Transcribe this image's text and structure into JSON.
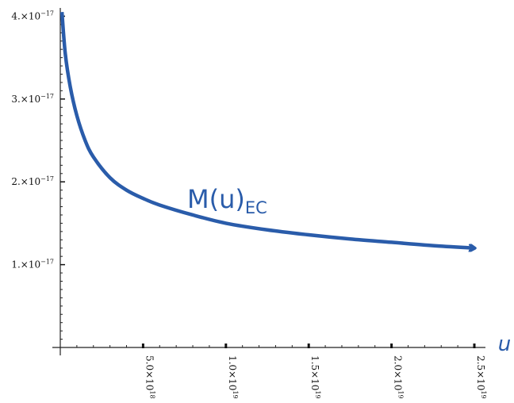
{
  "chart_data": {
    "type": "line",
    "title": "",
    "xlabel": "u",
    "ylabel": "",
    "xlim": [
      0,
      2.5e+19
    ],
    "ylim": [
      0,
      4.1e-17
    ],
    "x_ticks": [
      {
        "value": 5e+18,
        "label": "5.0×10",
        "exp": "18"
      },
      {
        "value": 1e+19,
        "label": "1.0×10",
        "exp": "19"
      },
      {
        "value": 1.5e+19,
        "label": "1.5×10",
        "exp": "19"
      },
      {
        "value": 2e+19,
        "label": "2.0×10",
        "exp": "19"
      },
      {
        "value": 2.5e+19,
        "label": "2.5×10",
        "exp": "19"
      }
    ],
    "y_ticks": [
      {
        "value": 1e-17,
        "label": "1.×10",
        "exp": "−17"
      },
      {
        "value": 2e-17,
        "label": "2.×10",
        "exp": "−17"
      },
      {
        "value": 3e-17,
        "label": "3.×10",
        "exp": "−17"
      },
      {
        "value": 4e-17,
        "label": "4.×10",
        "exp": "−17"
      }
    ],
    "series": [
      {
        "name": "",
        "color": "#2a5caa",
        "x": [
          1e+17,
          3e+17,
          6e+17,
          1e+18,
          1.5e+18,
          2e+18,
          3e+18,
          4e+18,
          5e+18,
          6e+18,
          8e+18,
          1e+19,
          1.25e+19,
          1.5e+19,
          1.75e+19,
          2e+19,
          2.25e+19,
          2.5e+19
        ],
        "y": [
          4.05e-17,
          3.55e-17,
          3.15e-17,
          2.8e-17,
          2.5e-17,
          2.3e-17,
          2.05e-17,
          1.9e-17,
          1.8e-17,
          1.72e-17,
          1.6e-17,
          1.5e-17,
          1.42e-17,
          1.36e-17,
          1.31e-17,
          1.27e-17,
          1.23e-17,
          1.2e-17
        ]
      }
    ],
    "annotation": {
      "text": "M(u)",
      "sub": "EC"
    },
    "grid": false
  }
}
